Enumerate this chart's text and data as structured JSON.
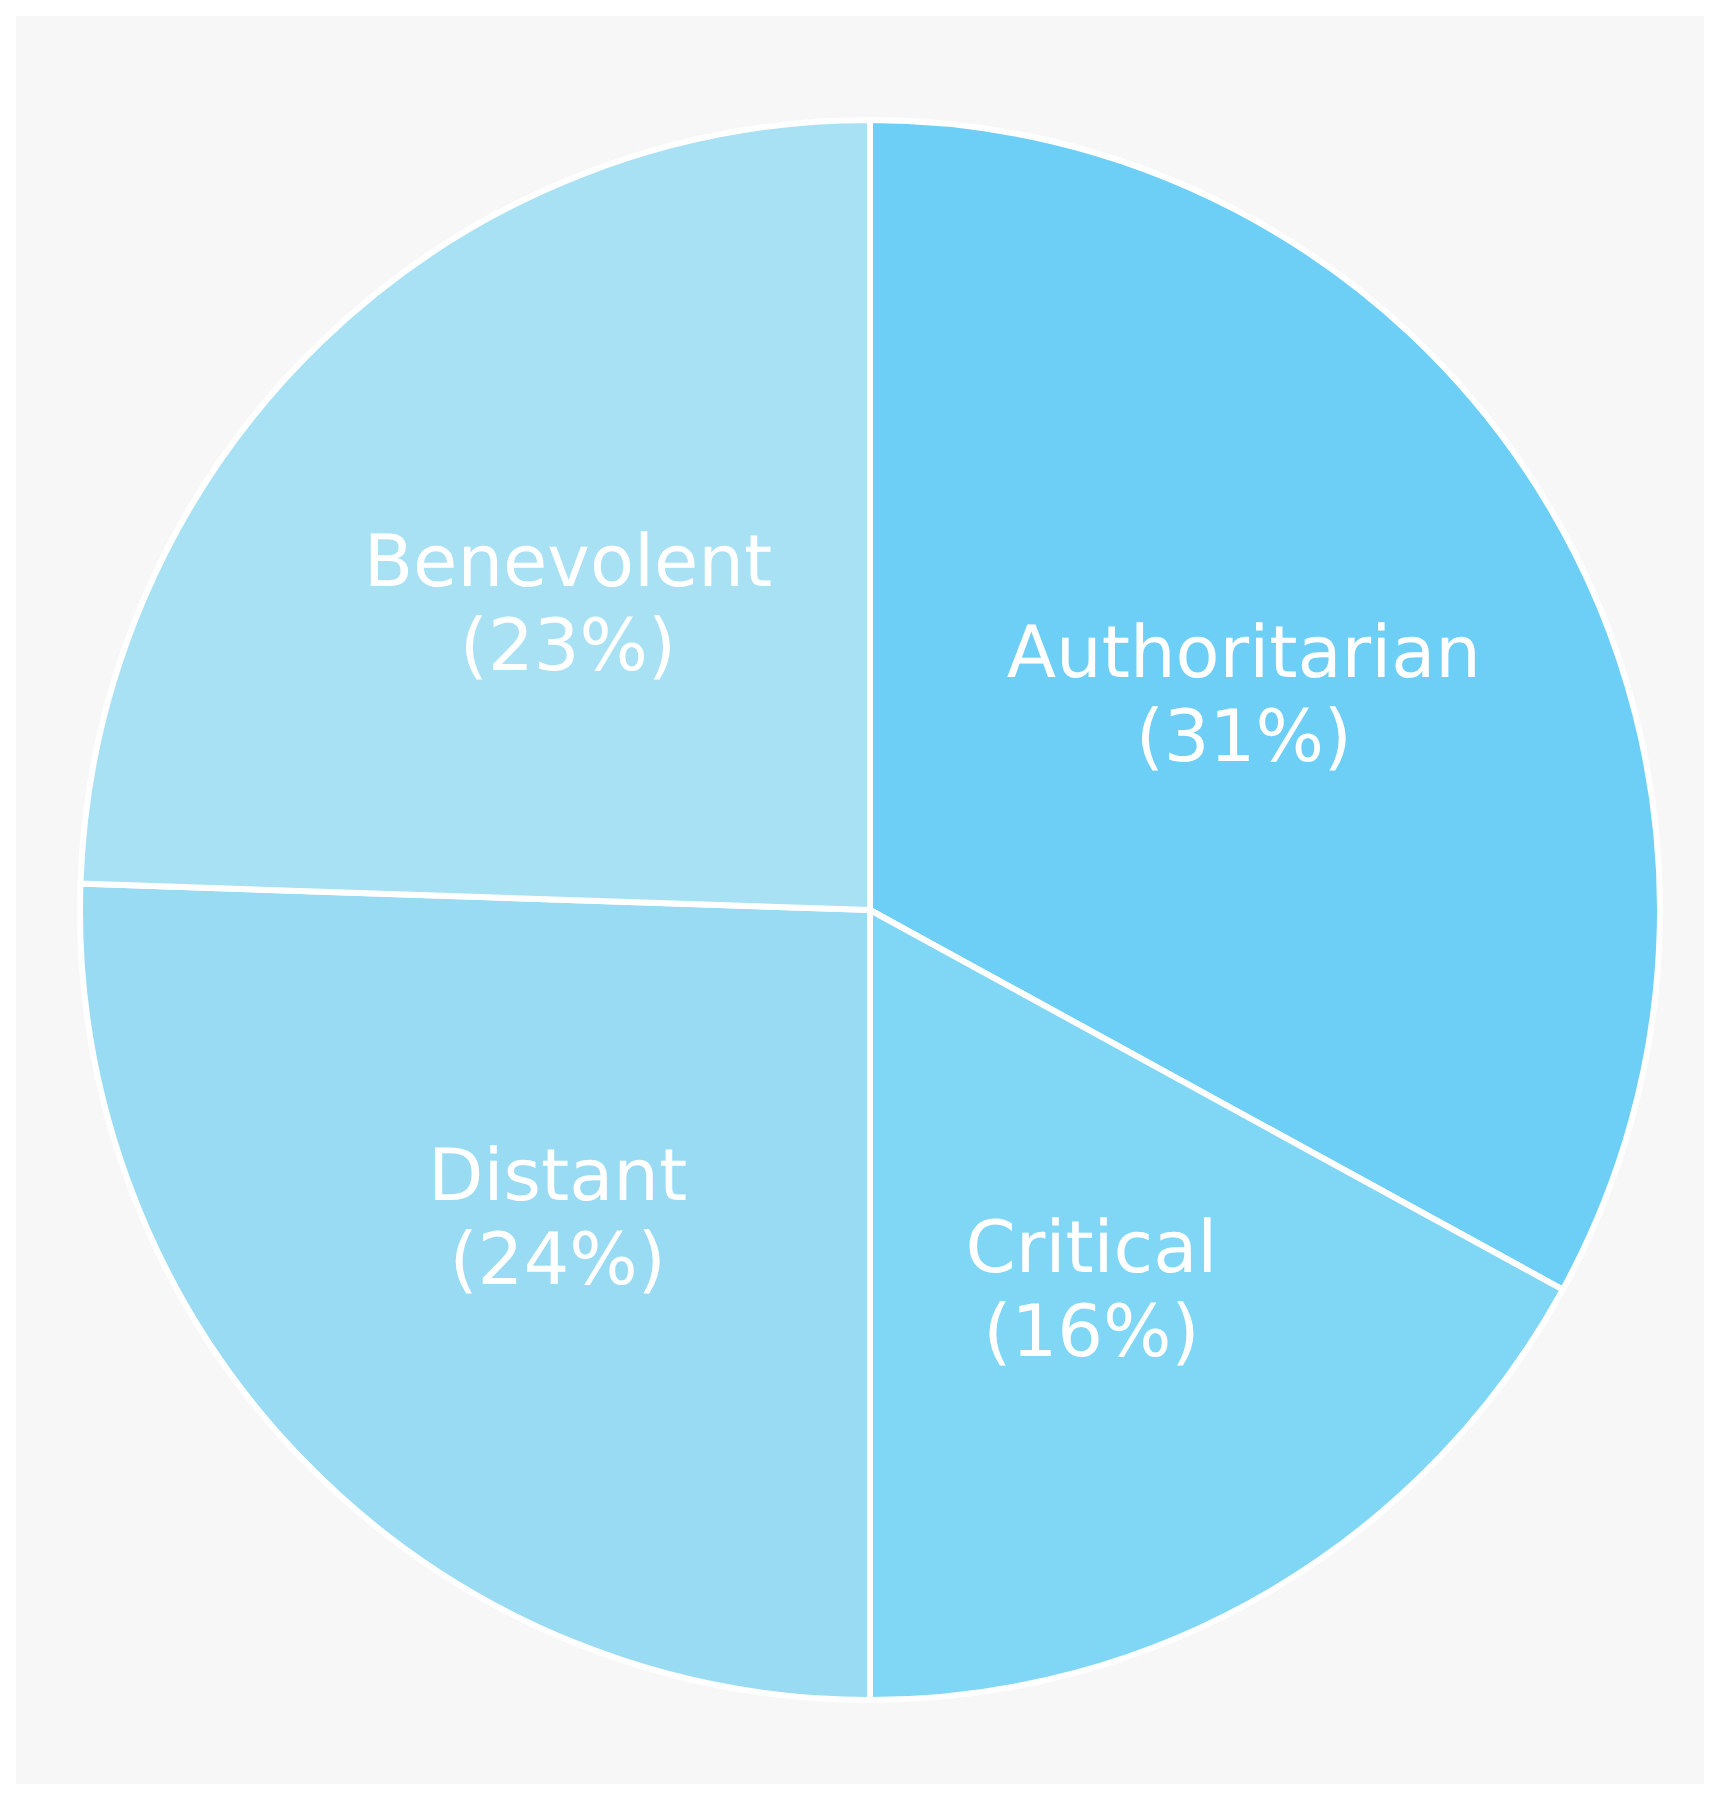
{
  "chart_data": {
    "type": "pie",
    "categories": [
      "Authoritarian",
      "Critical",
      "Distant",
      "Benevolent"
    ],
    "values": [
      31,
      16,
      24,
      23
    ],
    "value_labels": [
      "(31%)",
      "(16%)",
      "(24%)",
      "(23%)"
    ],
    "colors": [
      "#6dcff5",
      "#80d7f5",
      "#98dbf3",
      "#a8e1f4"
    ]
  }
}
